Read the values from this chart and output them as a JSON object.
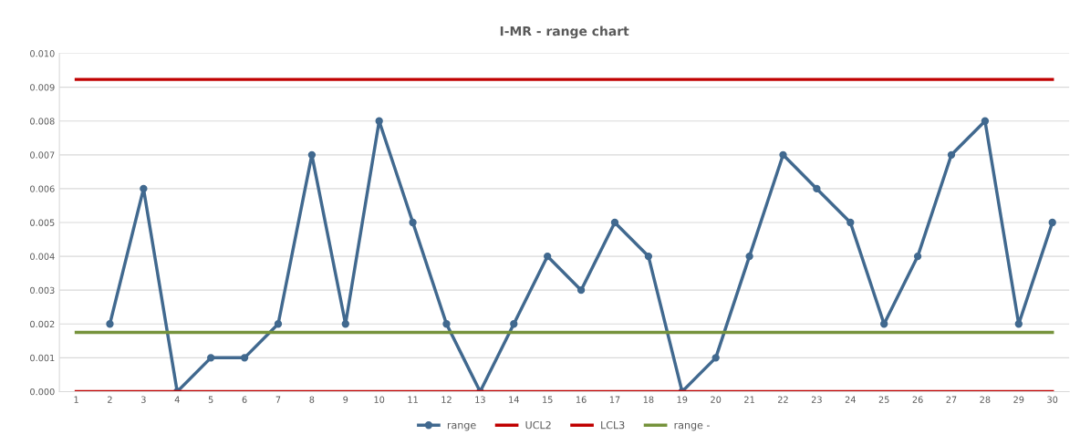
{
  "chart_data": {
    "type": "line",
    "title": "I-MR - range chart",
    "categories": [
      "1",
      "2",
      "3",
      "4",
      "5",
      "6",
      "7",
      "8",
      "9",
      "10",
      "11",
      "12",
      "13",
      "14",
      "15",
      "16",
      "17",
      "18",
      "19",
      "20",
      "21",
      "22",
      "23",
      "24",
      "25",
      "26",
      "27",
      "28",
      "29",
      "30"
    ],
    "series": [
      {
        "name": "range",
        "color": "#41698f",
        "marker": "circle",
        "values": [
          null,
          0.002,
          0.006,
          0.0,
          0.001,
          0.001,
          0.002,
          0.007,
          0.002,
          0.008,
          0.005,
          0.002,
          0.0,
          0.002,
          0.004,
          0.003,
          0.005,
          0.004,
          0.0,
          0.001,
          0.004,
          0.007,
          0.006,
          0.005,
          0.002,
          0.004,
          0.007,
          0.008,
          0.002,
          0.005
        ]
      },
      {
        "name": "UCL2",
        "color": "#c00000",
        "marker": "none",
        "values": [
          0.00923,
          0.00923,
          0.00923,
          0.00923,
          0.00923,
          0.00923,
          0.00923,
          0.00923,
          0.00923,
          0.00923,
          0.00923,
          0.00923,
          0.00923,
          0.00923,
          0.00923,
          0.00923,
          0.00923,
          0.00923,
          0.00923,
          0.00923,
          0.00923,
          0.00923,
          0.00923,
          0.00923,
          0.00923,
          0.00923,
          0.00923,
          0.00923,
          0.00923,
          0.00923
        ]
      },
      {
        "name": "LCL3",
        "color": "#c00000",
        "marker": "none",
        "values": [
          0,
          0,
          0,
          0,
          0,
          0,
          0,
          0,
          0,
          0,
          0,
          0,
          0,
          0,
          0,
          0,
          0,
          0,
          0,
          0,
          0,
          0,
          0,
          0,
          0,
          0,
          0,
          0,
          0,
          0
        ]
      },
      {
        "name": "range -",
        "color": "#76933c",
        "marker": "none",
        "values": [
          0.00175,
          0.00175,
          0.00175,
          0.00175,
          0.00175,
          0.00175,
          0.00175,
          0.00175,
          0.00175,
          0.00175,
          0.00175,
          0.00175,
          0.00175,
          0.00175,
          0.00175,
          0.00175,
          0.00175,
          0.00175,
          0.00175,
          0.00175,
          0.00175,
          0.00175,
          0.00175,
          0.00175,
          0.00175,
          0.00175,
          0.00175,
          0.00175,
          0.00175,
          0.00175
        ]
      }
    ],
    "ylim": [
      0,
      0.01
    ],
    "yticks": [
      {
        "value": 0,
        "label": "0.000"
      },
      {
        "value": 0.001,
        "label": "0.001"
      },
      {
        "value": 0.002,
        "label": "0.002"
      },
      {
        "value": 0.003,
        "label": "0.003"
      },
      {
        "value": 0.004,
        "label": "0.004"
      },
      {
        "value": 0.005,
        "label": "0.005"
      },
      {
        "value": 0.006,
        "label": "0.006"
      },
      {
        "value": 0.007,
        "label": "0.007"
      },
      {
        "value": 0.008,
        "label": "0.008"
      },
      {
        "value": 0.009,
        "label": "0.009"
      },
      {
        "value": 0.01,
        "label": "0.010"
      }
    ],
    "grid": "y",
    "legend": "bottom",
    "line_style": "solid"
  }
}
